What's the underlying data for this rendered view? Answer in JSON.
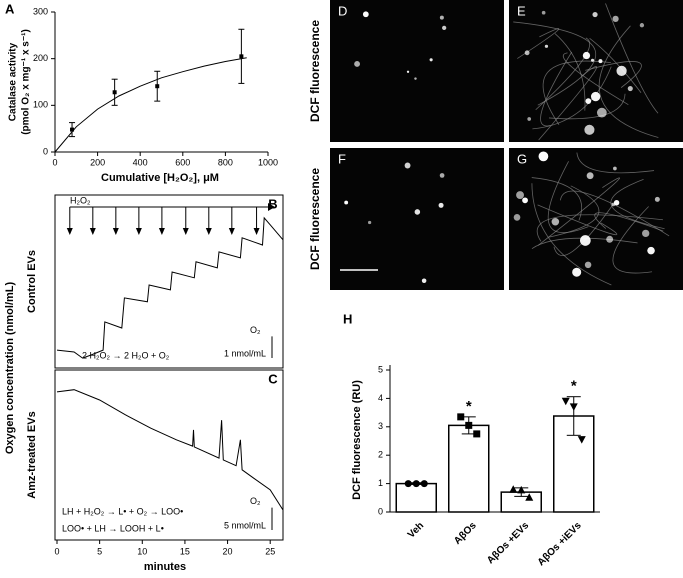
{
  "chart_data": [
    {
      "type": "scatter",
      "panel": "A",
      "xlabel": "Cumulative [H₂O₂], μM",
      "ylabel": [
        "Catalase activity",
        "(pmol O₂ x mg⁻¹ x s⁻¹)"
      ],
      "xlim": [
        0,
        1000
      ],
      "ylim": [
        0,
        300
      ],
      "xticks": [
        0,
        200,
        400,
        600,
        800,
        1000
      ],
      "yticks": [
        0,
        100,
        200,
        300
      ],
      "x": [
        80,
        280,
        480,
        875
      ],
      "values": [
        48,
        128,
        141,
        205
      ],
      "errors": [
        15,
        28,
        32,
        58
      ],
      "fit": {
        "x": [
          0,
          100,
          200,
          300,
          400,
          500,
          600,
          700,
          800,
          900
        ],
        "values": [
          0,
          54,
          92,
          120,
          141,
          159,
          172,
          184,
          194,
          202
        ]
      },
      "color": "#000000"
    },
    {
      "type": "line",
      "panel": "B",
      "title": "Control EVs",
      "ylabel": "Oxygen concentration (nmol/mL)",
      "xlim": [
        0,
        26.5
      ],
      "ylim": [
        0,
        8
      ],
      "x": [
        0,
        2,
        3,
        4,
        5.4,
        5.6,
        7.6,
        7.9,
        10.6,
        10.8,
        13.3,
        13.5,
        16.1,
        16.3,
        18.8,
        19,
        21.5,
        21.7,
        24.1,
        24.3,
        25,
        26.5
      ],
      "values": [
        0.83,
        0.74,
        0.46,
        0.6,
        0.83,
        2.13,
        1.85,
        3.24,
        3.06,
        3.84,
        3.61,
        4.44,
        4.17,
        4.91,
        4.63,
        5.37,
        5.09,
        6.02,
        5.69,
        6.94,
        6.62,
        5.93
      ],
      "additions": [
        1.5,
        4.2,
        6.9,
        9.6,
        12.3,
        15.1,
        17.8,
        20.5,
        23.4
      ],
      "addition_label": "H₂O₂",
      "equation": [
        "2 H₂O₂ → 2 H₂O + O₂"
      ],
      "scale_species": "O₂",
      "scale_bar": {
        "value": 1,
        "label": "1 nmol/mL"
      },
      "color": "#000000"
    },
    {
      "type": "line",
      "panel": "C",
      "title": "Amz-treated EVs",
      "xlabel": "minutes",
      "xlim": [
        0,
        26.5
      ],
      "ylim": [
        0,
        38
      ],
      "xticks": [
        0,
        5,
        10,
        15,
        20,
        25
      ],
      "x": [
        0,
        2,
        5,
        8,
        11,
        14,
        15.9,
        16,
        16.1,
        19,
        19.3,
        19.5,
        21,
        21.5,
        21.7,
        23,
        25,
        26.5
      ],
      "values": [
        33.1,
        33.6,
        31.3,
        28,
        25,
        22.4,
        21,
        24.6,
        20.8,
        18.3,
        26.8,
        17.9,
        16.6,
        22.4,
        15.7,
        13.9,
        11.2,
        6.7
      ],
      "equation": [
        "LH + H₂O₂ → L• + O₂ → LOO•",
        "LOO• + LH → LOOH + L•"
      ],
      "scale_species": "O₂",
      "scale_bar": {
        "value": 5,
        "label": "5 nmol/mL"
      },
      "color": "#000000"
    },
    {
      "type": "bar",
      "panel": "H",
      "ylabel": "DCF fluorescence (RU)",
      "ylim": [
        0,
        5
      ],
      "yticks": [
        0,
        1,
        2,
        3,
        4,
        5
      ],
      "categories": [
        "Veh",
        "AβOs",
        "AβOs +EVs",
        "AβOs +iEVs"
      ],
      "values": [
        1.0,
        3.05,
        0.7,
        3.38
      ],
      "errors": [
        0.03,
        0.3,
        0.15,
        0.68
      ],
      "points": [
        [
          1,
          1,
          1
        ],
        [
          3.35,
          3.05,
          2.75
        ],
        [
          0.8,
          0.78,
          0.52
        ],
        [
          3.9,
          3.7,
          2.55
        ]
      ],
      "significance": [
        null,
        "*",
        null,
        "*"
      ],
      "color": "#ffffff"
    }
  ],
  "images": {
    "panels": [
      "D",
      "E",
      "F",
      "G"
    ],
    "row_labels": [
      "DCF fluorescence",
      "DCF fluorescence"
    ]
  }
}
